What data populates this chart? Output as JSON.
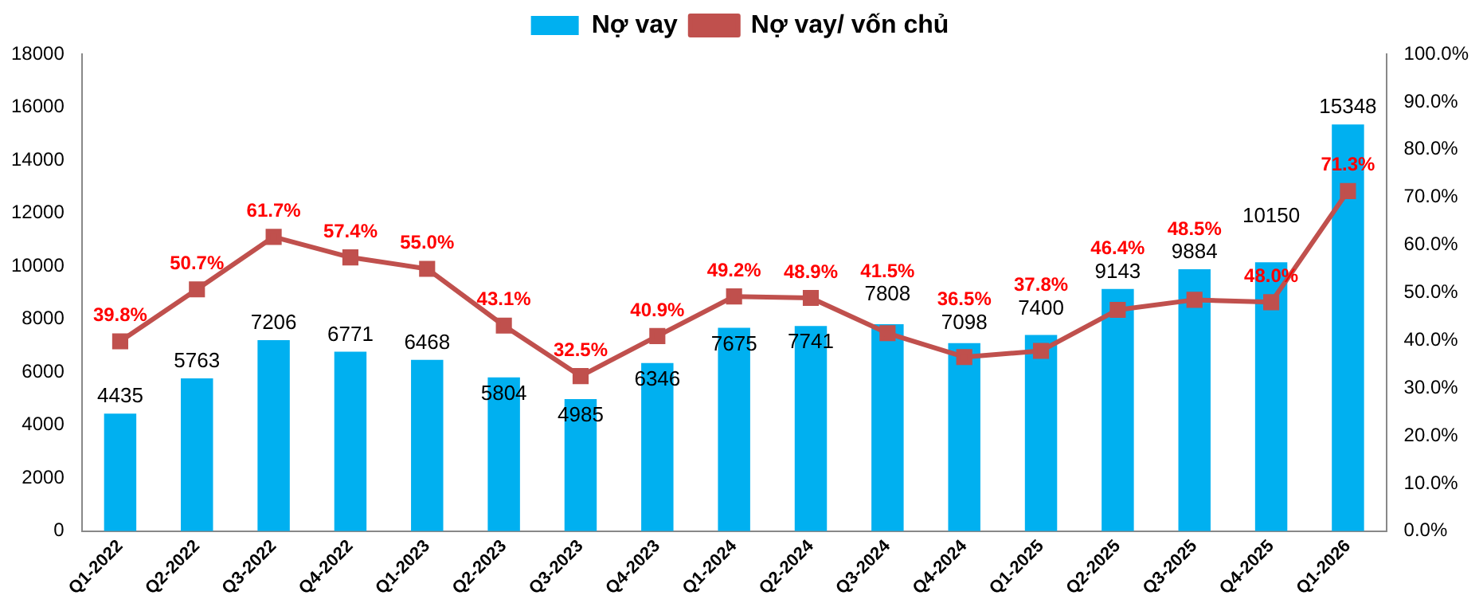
{
  "chart_data": {
    "type": "bar",
    "categories": [
      "Q1-2022",
      "Q2-2022",
      "Q3-2022",
      "Q4-2022",
      "Q1-2023",
      "Q2-2023",
      "Q3-2023",
      "Q4-2023",
      "Q1-2024",
      "Q2-2024",
      "Q3-2024",
      "Q4-2024",
      "Q1-2025",
      "Q2-2025",
      "Q3-2025",
      "Q4-2025",
      "Q1-2026"
    ],
    "series": [
      {
        "name": "Nợ vay",
        "color": "#00b0f0",
        "values": [
          4435,
          5763,
          7206,
          6771,
          6468,
          5804,
          4985,
          6346,
          7675,
          7741,
          7808,
          7098,
          7400,
          9143,
          9884,
          10150,
          15348
        ],
        "value_labels": [
          "4435",
          "5763",
          "7206",
          "6771",
          "6468",
          "5804",
          "4985",
          "6346",
          "7675",
          "7741",
          "7808",
          "7098",
          "7400",
          "9143",
          "9884",
          "10150",
          "15348"
        ]
      },
      {
        "name": "Nợ vay/ vốn chủ",
        "type": "line",
        "axis": "y2",
        "color": "#c0504d",
        "marker": "square",
        "values": [
          39.8,
          50.7,
          61.7,
          57.4,
          55.0,
          43.1,
          32.5,
          40.9,
          49.2,
          48.9,
          41.5,
          36.5,
          37.8,
          46.4,
          48.5,
          48.0,
          71.3
        ],
        "value_labels": [
          "39.8%",
          "50.7%",
          "61.7%",
          "57.4%",
          "55.0%",
          "43.1%",
          "32.5%",
          "40.9%",
          "49.2%",
          "48.9%",
          "41.5%",
          "36.5%",
          "37.8%",
          "46.4%",
          "48.5%",
          "48.0%",
          "71.3%"
        ]
      }
    ],
    "ylim": [
      0,
      18000
    ],
    "yticks": [
      0,
      2000,
      4000,
      6000,
      8000,
      10000,
      12000,
      14000,
      16000,
      18000
    ],
    "y2lim": [
      0,
      100
    ],
    "y2ticks": [
      {
        "value": 0,
        "label": "0.0%"
      },
      {
        "value": 10,
        "label": "10.0%"
      },
      {
        "value": 20,
        "label": "20.0%"
      },
      {
        "value": 30,
        "label": "30.0%"
      },
      {
        "value": 40,
        "label": "40.0%"
      },
      {
        "value": 50,
        "label": "50.0%"
      },
      {
        "value": 60,
        "label": "60.0%"
      },
      {
        "value": 70,
        "label": "70.0%"
      },
      {
        "value": 80,
        "label": "80.0%"
      },
      {
        "value": 90,
        "label": "90.0%"
      },
      {
        "value": 100,
        "label": "100.0%"
      }
    ],
    "grid": false,
    "legend": "top"
  }
}
